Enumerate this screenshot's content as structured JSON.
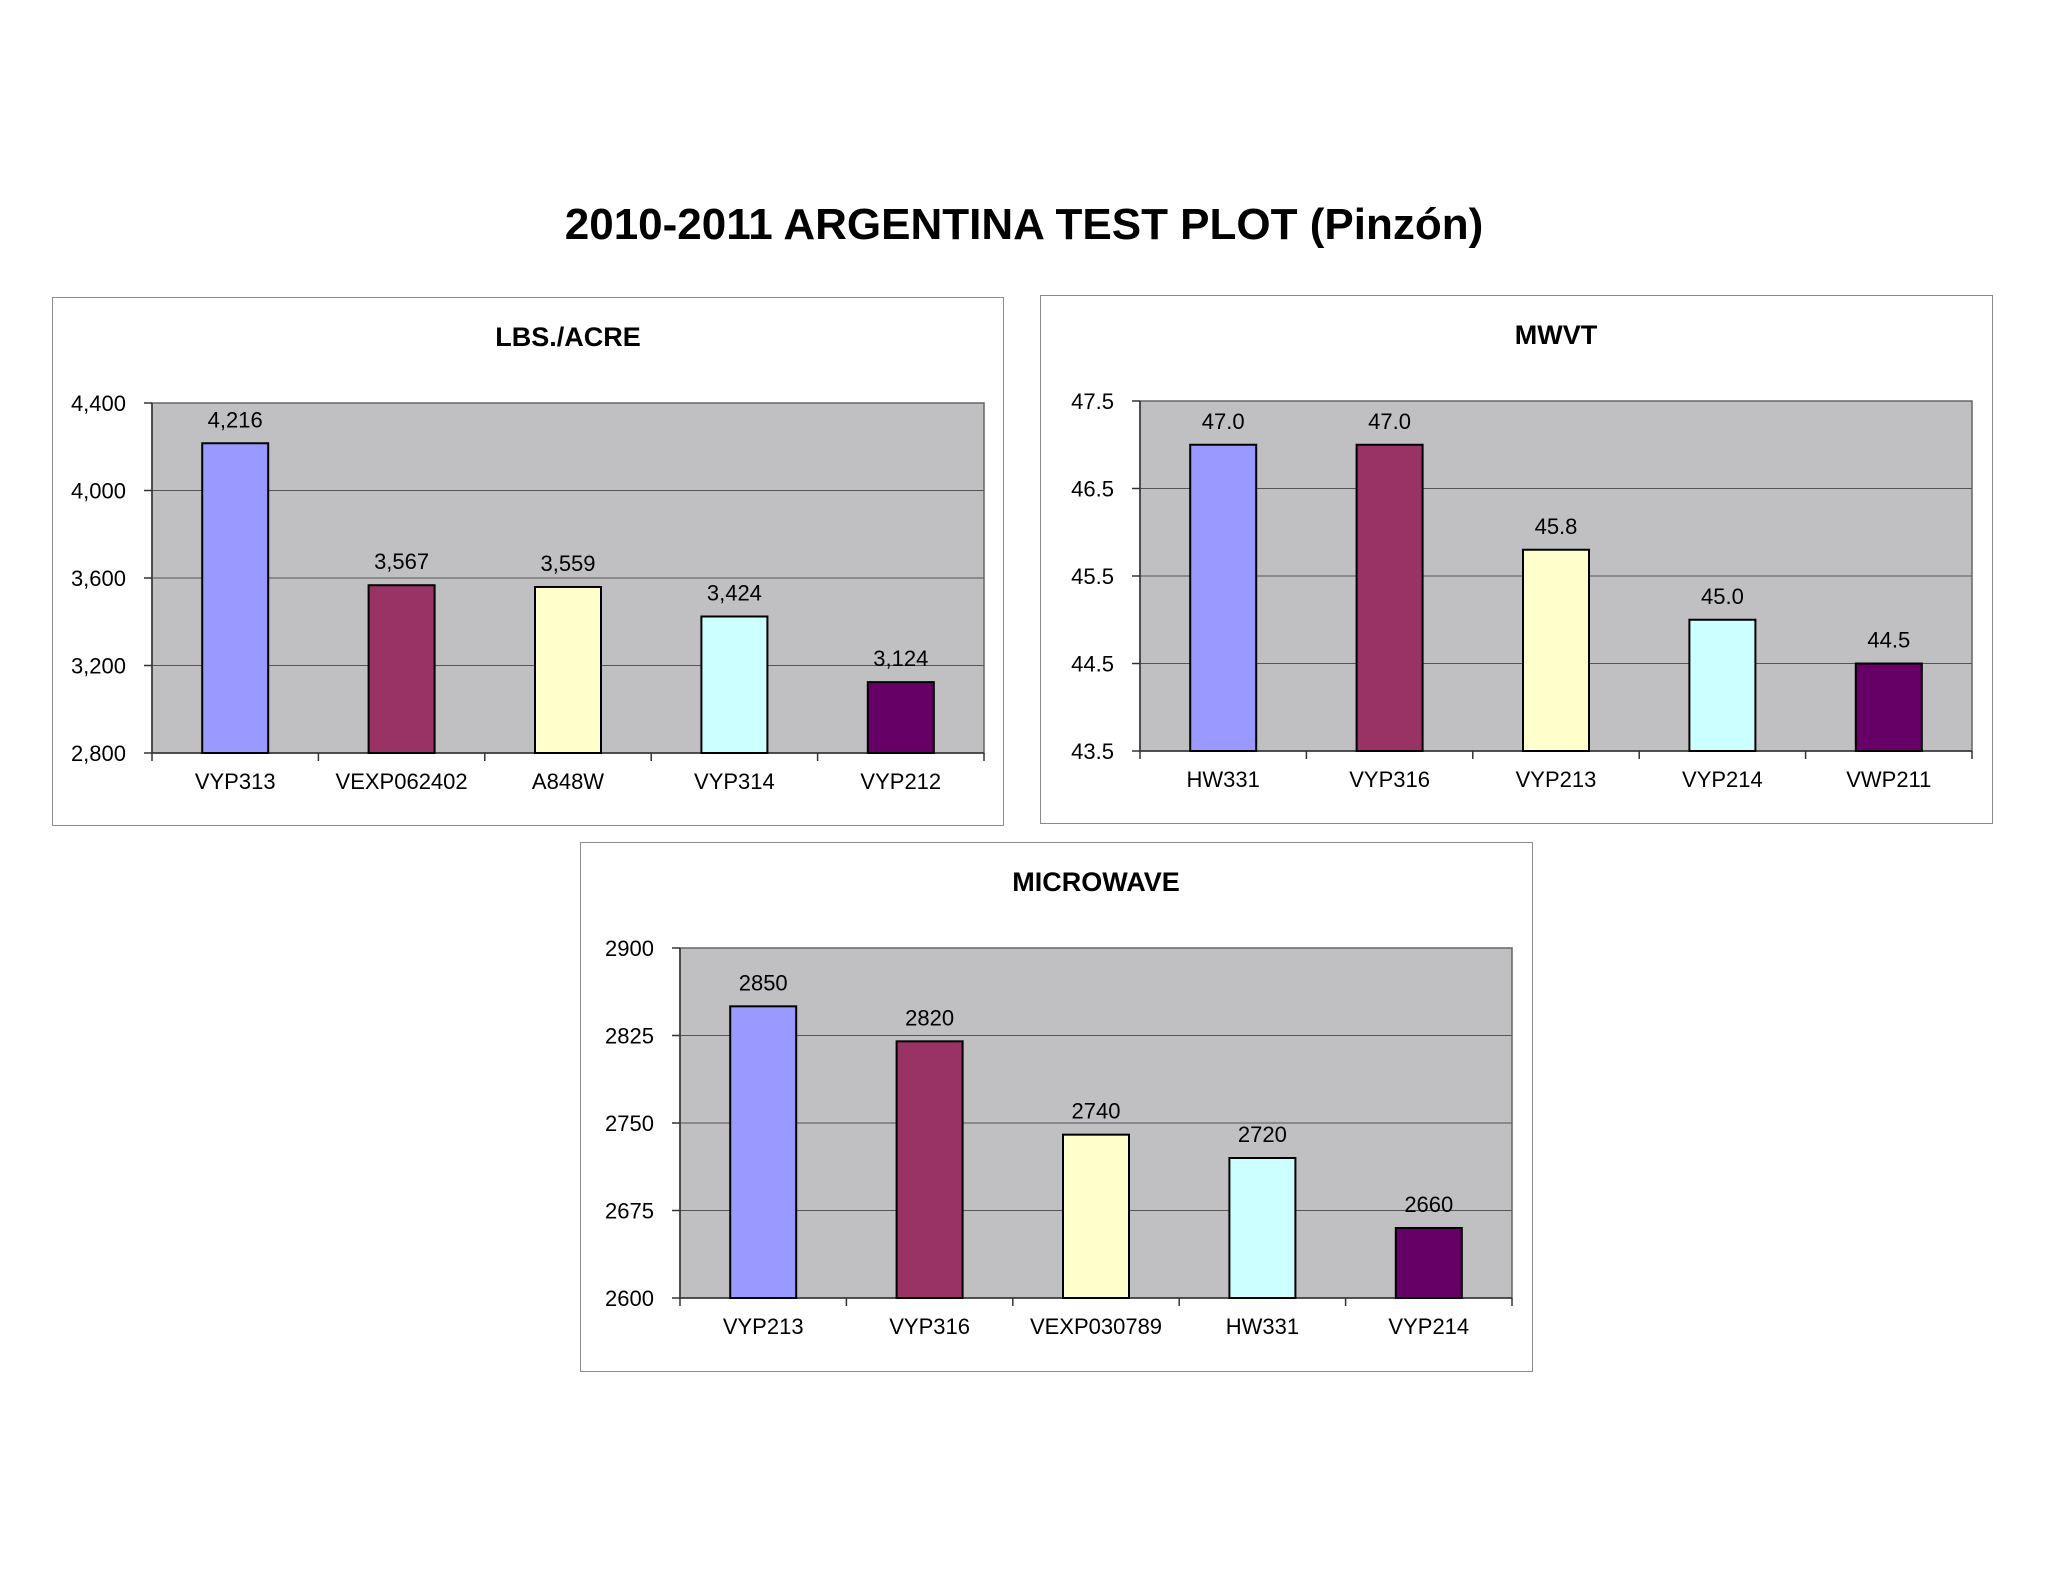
{
  "page": {
    "title": "2010-2011 ARGENTINA TEST PLOT (Pinzón)"
  },
  "colors": {
    "plot_bg": "#c0bfc2",
    "grid": "#555555",
    "bars": [
      "#9999ff",
      "#993366",
      "#ffffcc",
      "#ccffff",
      "#660066"
    ]
  },
  "chart_data": [
    {
      "type": "bar",
      "title": "LBS./ACRE",
      "categories": [
        "VYP313",
        "VEXP062402",
        "A848W",
        "VYP314",
        "VYP212"
      ],
      "values": [
        4216,
        3567,
        3559,
        3424,
        3124
      ],
      "value_labels": [
        "4,216",
        "3,567",
        "3,559",
        "3,424",
        "3,124"
      ],
      "ylim": [
        2800,
        4400
      ],
      "yticks": [
        2800,
        3200,
        3600,
        4000,
        4400
      ],
      "ytick_labels": [
        "2,800",
        "3,200",
        "3,600",
        "4,000",
        "4,400"
      ],
      "grid": true,
      "legend": "none"
    },
    {
      "type": "bar",
      "title": "MWVT",
      "categories": [
        "HW331",
        "VYP316",
        "VYP213",
        "VYP214",
        "VWP211"
      ],
      "values": [
        47.0,
        47.0,
        45.8,
        45.0,
        44.5
      ],
      "value_labels": [
        "47.0",
        "47.0",
        "45.8",
        "45.0",
        "44.5"
      ],
      "ylim": [
        43.5,
        47.5
      ],
      "yticks": [
        43.5,
        44.5,
        45.5,
        46.5,
        47.5
      ],
      "ytick_labels": [
        "43.5",
        "44.5",
        "45.5",
        "46.5",
        "47.5"
      ],
      "grid": true,
      "legend": "none"
    },
    {
      "type": "bar",
      "title": "MICROWAVE",
      "categories": [
        "VYP213",
        "VYP316",
        "VEXP030789",
        "HW331",
        "VYP214"
      ],
      "values": [
        2850,
        2820,
        2740,
        2720,
        2660
      ],
      "value_labels": [
        "2850",
        "2820",
        "2740",
        "2720",
        "2660"
      ],
      "ylim": [
        2600,
        2900
      ],
      "yticks": [
        2600,
        2675,
        2750,
        2825,
        2900
      ],
      "ytick_labels": [
        "2600",
        "2675",
        "2750",
        "2825",
        "2900"
      ],
      "grid": true,
      "legend": "none"
    }
  ]
}
